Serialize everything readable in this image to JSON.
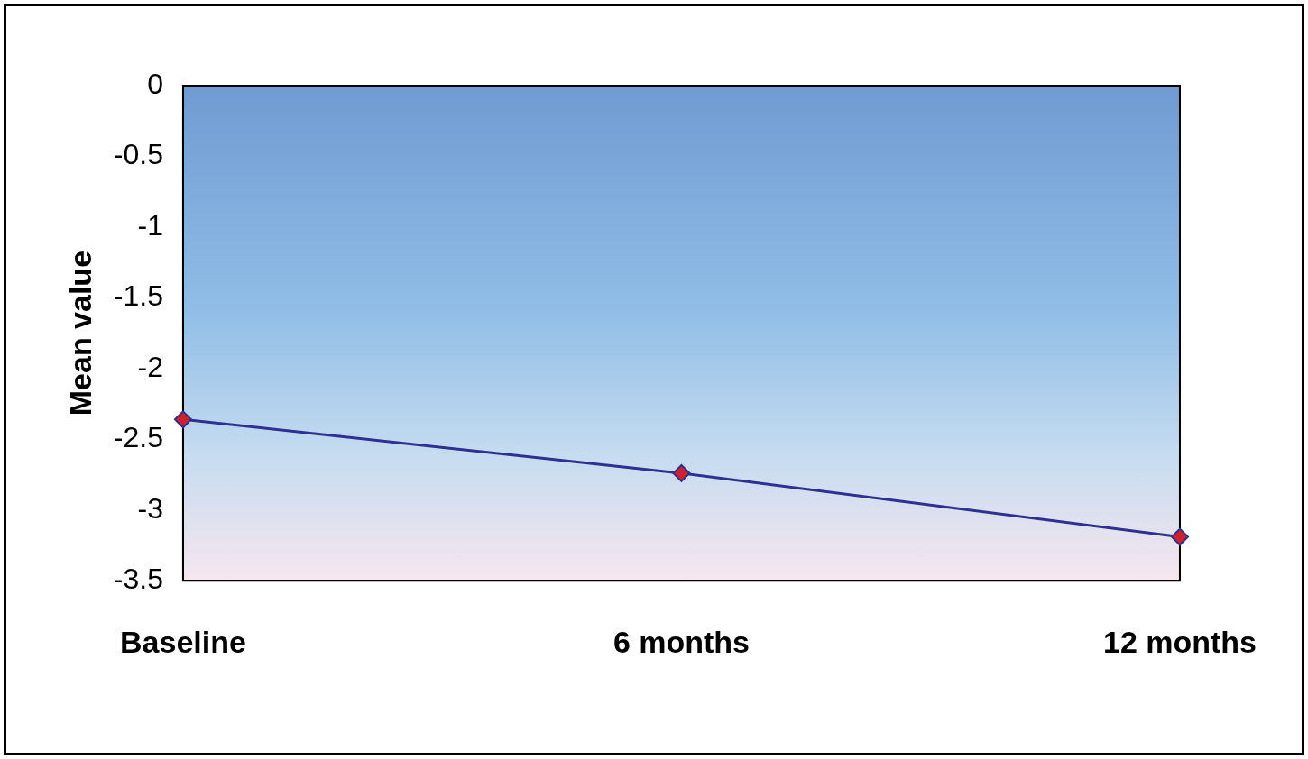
{
  "chart_data": {
    "type": "line",
    "ylabel": "Mean value",
    "categories": [
      "Baseline",
      "6 months",
      "12 months"
    ],
    "series": [
      {
        "color": "#2e3192",
        "values": [
          -2.36,
          -2.74,
          -3.19
        ]
      }
    ],
    "ylim": [
      -3.5,
      0
    ],
    "yticks": [
      0,
      -0.5,
      -1,
      -1.5,
      -2,
      -2.5,
      -3,
      -3.5
    ],
    "grid": false,
    "legend": false,
    "marker": "diamond",
    "line_style": "solid"
  }
}
